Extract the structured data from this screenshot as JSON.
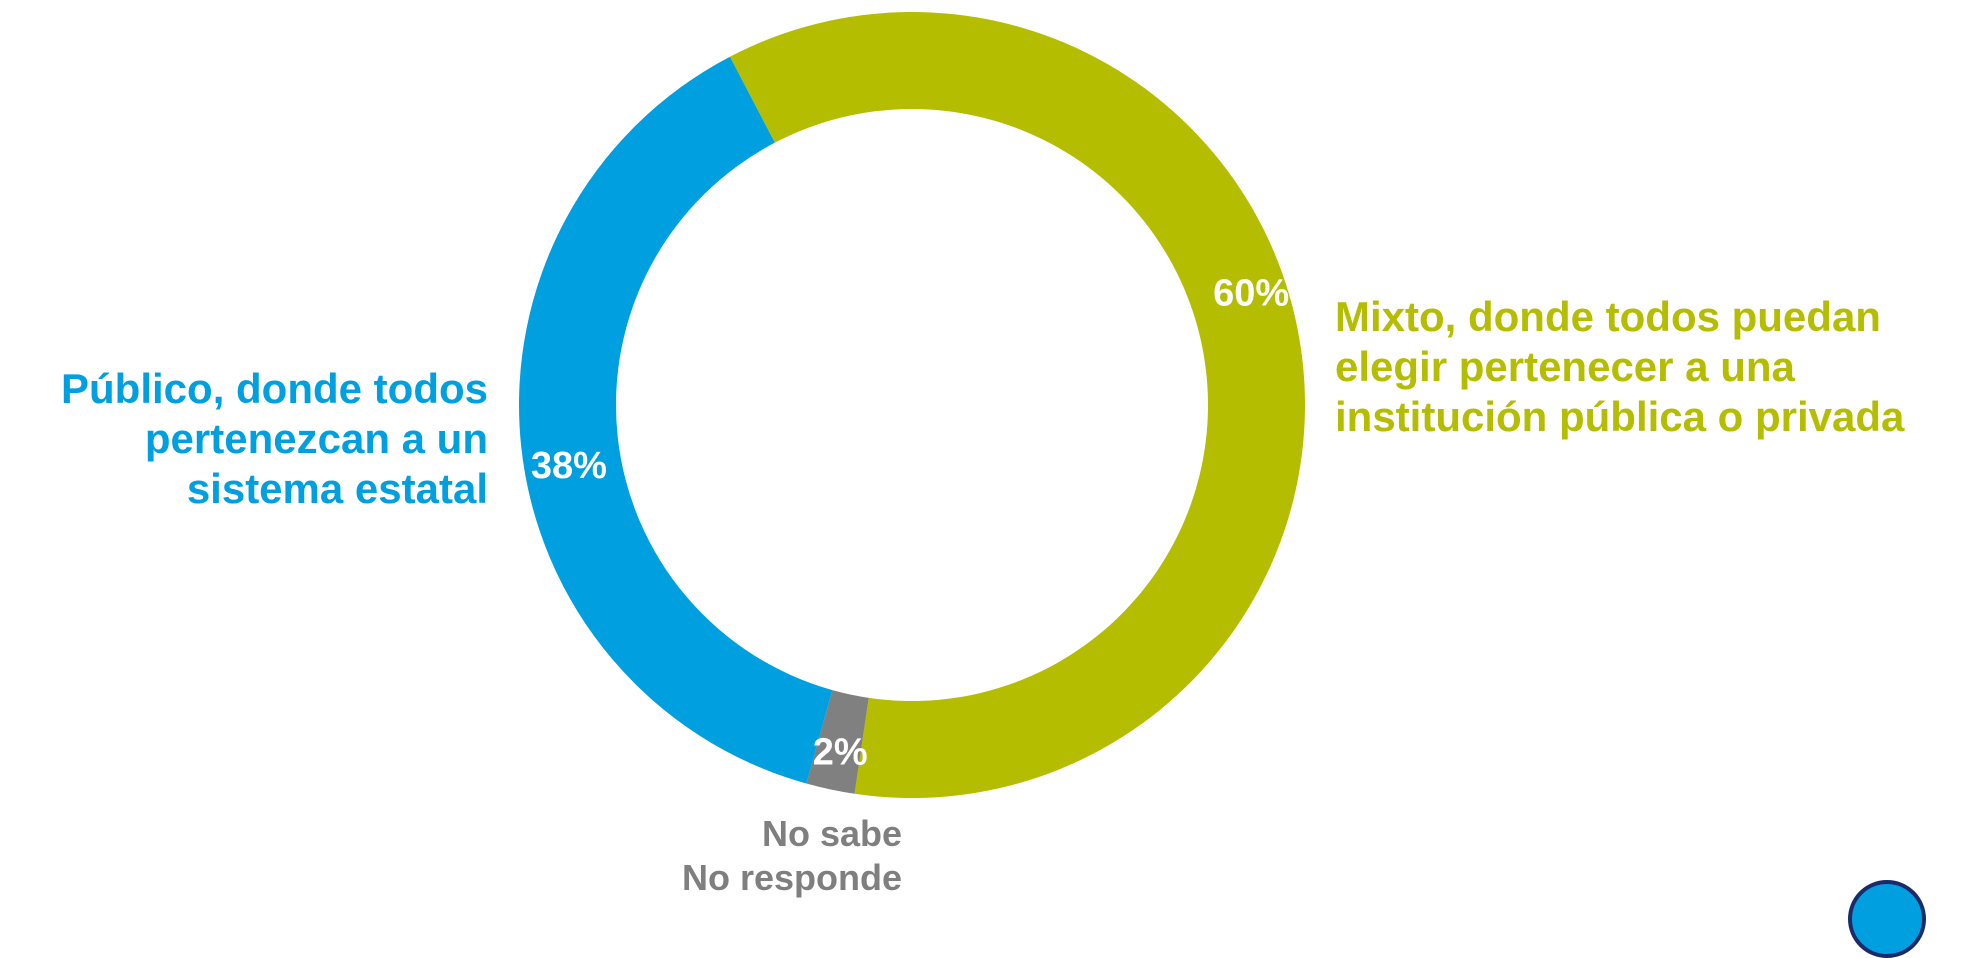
{
  "chart_data": {
    "type": "pie",
    "donut": true,
    "legend": "none",
    "slices": [
      {
        "label_lines": [
          "Mixto, donde todos puedan",
          "elegir pertenecer a una",
          "institución pública o privada"
        ],
        "value": 60,
        "value_label": "60%",
        "color": "#b5bd00"
      },
      {
        "label_lines": [
          "No sabe",
          "No responde"
        ],
        "value": 2,
        "value_label": "2%",
        "color": "#808080"
      },
      {
        "label_lines": [
          "Público, donde todos",
          "pertenezcan a un",
          "sistema estatal"
        ],
        "value": 38,
        "value_label": "38%",
        "color": "#009fe0"
      }
    ]
  },
  "colors": {
    "value_text": "#ffffff",
    "no_sabe_text": "#7f7f7f"
  }
}
